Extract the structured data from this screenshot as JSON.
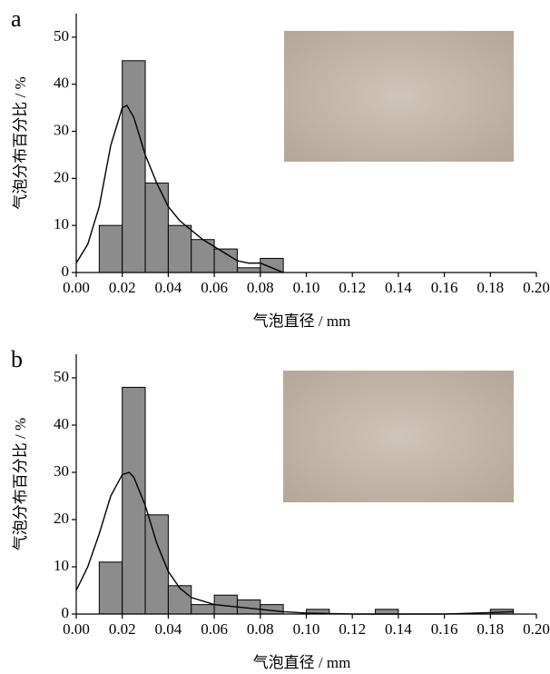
{
  "chart_data": [
    {
      "type": "histogram",
      "panel_label": "a",
      "x_label": "气泡直径 / mm",
      "y_label": "气泡分布百分比 / %",
      "bins": [
        0.01,
        0.02,
        0.03,
        0.04,
        0.05,
        0.06,
        0.07,
        0.08,
        0.09
      ],
      "values": [
        10,
        45,
        19,
        10,
        7,
        5,
        1,
        3
      ],
      "color": "#8c8c8c",
      "curve": {
        "x": [
          0,
          0.005,
          0.01,
          0.015,
          0.02,
          0.022,
          0.025,
          0.03,
          0.035,
          0.04,
          0.045,
          0.05,
          0.055,
          0.06,
          0.065,
          0.07,
          0.075,
          0.08,
          0.085,
          0.09
        ],
        "y": [
          2,
          6,
          14,
          27,
          35,
          35.5,
          33,
          25,
          19,
          14,
          11,
          9,
          7,
          5.5,
          4,
          2.5,
          2,
          2,
          1,
          0
        ]
      },
      "xlim": [
        0,
        0.2
      ],
      "ylim": [
        0,
        55
      ],
      "xticks": [
        {
          "value": 0,
          "label": "0.00"
        },
        {
          "value": 0.02,
          "label": "0.02"
        },
        {
          "value": 0.04,
          "label": "0.04"
        },
        {
          "value": 0.06,
          "label": "0.06"
        },
        {
          "value": 0.08,
          "label": "0.08"
        },
        {
          "value": 0.1,
          "label": "0.10"
        },
        {
          "value": 0.12,
          "label": "0.12"
        },
        {
          "value": 0.14,
          "label": "0.14"
        },
        {
          "value": 0.16,
          "label": "0.16"
        },
        {
          "value": 0.18,
          "label": "0.18"
        },
        {
          "value": 0.2,
          "label": "0.20"
        }
      ],
      "yticks": [
        0,
        10,
        20,
        30,
        40,
        50
      ]
    },
    {
      "type": "histogram",
      "panel_label": "b",
      "x_label": "气泡直径 / mm",
      "y_label": "气泡分布百分比 / %",
      "bins": [
        0.01,
        0.02,
        0.03,
        0.04,
        0.05,
        0.06,
        0.07,
        0.08,
        0.09,
        0.1,
        0.11,
        0.12,
        0.13,
        0.14,
        0.15,
        0.16,
        0.17,
        0.18,
        0.19
      ],
      "values": [
        11,
        48,
        21,
        6,
        2,
        4,
        3,
        2,
        0,
        1,
        0,
        0,
        1,
        0,
        0,
        0,
        0,
        1
      ],
      "color": "#8c8c8c",
      "curve": {
        "x": [
          0,
          0.005,
          0.01,
          0.015,
          0.02,
          0.023,
          0.025,
          0.03,
          0.035,
          0.04,
          0.045,
          0.05,
          0.06,
          0.07,
          0.08,
          0.09,
          0.1,
          0.12,
          0.14,
          0.16,
          0.18,
          0.19
        ],
        "y": [
          5,
          10,
          17,
          25,
          29.5,
          30,
          29,
          23,
          15,
          9,
          5.5,
          3.5,
          2,
          1.5,
          1,
          0.5,
          0.2,
          0,
          0,
          0,
          0.3,
          0.5
        ]
      },
      "xlim": [
        0,
        0.2
      ],
      "ylim": [
        0,
        55
      ],
      "xticks": [
        {
          "value": 0,
          "label": "0.00"
        },
        {
          "value": 0.02,
          "label": "0.02"
        },
        {
          "value": 0.04,
          "label": "0.04"
        },
        {
          "value": 0.06,
          "label": "0.06"
        },
        {
          "value": 0.08,
          "label": "0.08"
        },
        {
          "value": 0.1,
          "label": "0.10"
        },
        {
          "value": 0.12,
          "label": "0.12"
        },
        {
          "value": 0.14,
          "label": "0.14"
        },
        {
          "value": 0.16,
          "label": "0.16"
        },
        {
          "value": 0.18,
          "label": "0.18"
        },
        {
          "value": 0.2,
          "label": "0.20"
        }
      ],
      "yticks": [
        0,
        10,
        20,
        30,
        40,
        50
      ]
    }
  ]
}
